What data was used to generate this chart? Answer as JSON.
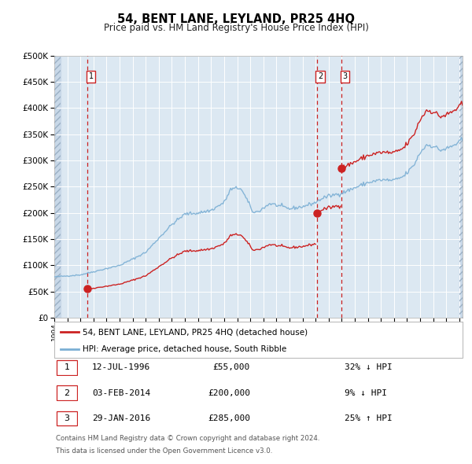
{
  "title": "54, BENT LANE, LEYLAND, PR25 4HQ",
  "subtitle": "Price paid vs. HM Land Registry's House Price Index (HPI)",
  "sale1_date_x": 1996.542,
  "sale1_price": 55000,
  "sale2_date_x": 2014.083,
  "sale2_price": 200000,
  "sale3_date_x": 2016.0,
  "sale3_price": 285000,
  "hpi_color": "#7bafd4",
  "price_color": "#cc2222",
  "background_color": "#dce8f2",
  "hatch_bg_color": "#c8d8e8",
  "grid_color": "#ffffff",
  "legend_label_price": "54, BENT LANE, LEYLAND, PR25 4HQ (detached house)",
  "legend_label_hpi": "HPI: Average price, detached house, South Ribble",
  "table_row1": [
    "1",
    "12-JUL-1996",
    "£55,000",
    "32% ↓ HPI"
  ],
  "table_row2": [
    "2",
    "03-FEB-2014",
    "£200,000",
    "9% ↓ HPI"
  ],
  "table_row3": [
    "3",
    "29-JAN-2016",
    "£285,000",
    "25% ↑ HPI"
  ],
  "footnote1": "Contains HM Land Registry data © Crown copyright and database right 2024.",
  "footnote2": "This data is licensed under the Open Government Licence v3.0.",
  "ylim_max": 500000,
  "ylim_min": 0,
  "xmin": 1994.0,
  "xmax": 2025.25,
  "hpi_anchors_x": [
    1994.0,
    1995.0,
    1996.0,
    1997.0,
    1998.0,
    1999.0,
    2000.0,
    2001.0,
    2002.0,
    2003.0,
    2004.0,
    2005.0,
    2006.0,
    2007.0,
    2007.5,
    2008.25,
    2008.75,
    2009.25,
    2009.75,
    2010.5,
    2011.0,
    2012.0,
    2013.0,
    2014.0,
    2014.5,
    2015.0,
    2016.0,
    2017.0,
    2018.0,
    2019.0,
    2020.0,
    2020.75,
    2021.5,
    2022.0,
    2022.5,
    2023.0,
    2023.5,
    2024.0,
    2024.5,
    2025.0,
    2025.25
  ],
  "hpi_anchors_y": [
    78000,
    80000,
    82000,
    88000,
    94000,
    100000,
    112000,
    125000,
    152000,
    178000,
    198000,
    200000,
    205000,
    220000,
    245000,
    248000,
    225000,
    200000,
    205000,
    218000,
    215000,
    208000,
    212000,
    220000,
    228000,
    232000,
    238000,
    248000,
    258000,
    263000,
    262000,
    270000,
    290000,
    315000,
    330000,
    328000,
    320000,
    322000,
    328000,
    335000,
    340000
  ]
}
